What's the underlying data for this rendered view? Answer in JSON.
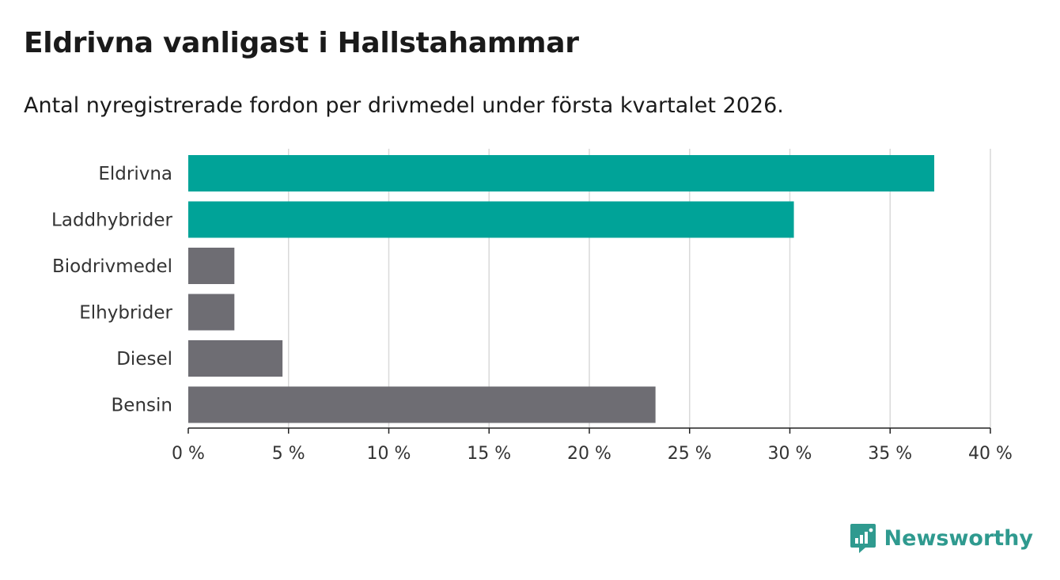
{
  "title": "Eldrivna vanligast i Hallstahammar",
  "subtitle": "Antal nyregistrerade fordon per drivmedel under första kvartalet 2026.",
  "brand": {
    "name": "Newsworthy",
    "icon": "newsworthy-logo-icon",
    "color": "#2f9a8f"
  },
  "chart_data": {
    "type": "bar",
    "orientation": "horizontal",
    "title": "Eldrivna vanligast i Hallstahammar",
    "subtitle": "Antal nyregistrerade fordon per drivmedel under första kvartalet 2026.",
    "xlabel": "",
    "ylabel": "",
    "xlim": [
      0,
      40
    ],
    "unit_suffix": " %",
    "ticks": [
      0,
      5,
      10,
      15,
      20,
      25,
      30,
      35,
      40
    ],
    "tick_labels": [
      "0 %",
      "5 %",
      "10 %",
      "15 %",
      "20 %",
      "25 %",
      "30 %",
      "35 %",
      "40 %"
    ],
    "grid": true,
    "categories": [
      "Eldrivna",
      "Laddhybrider",
      "Biodrivmedel",
      "Elhybrider",
      "Diesel",
      "Bensin"
    ],
    "values": [
      37.2,
      30.2,
      2.3,
      2.3,
      4.7,
      23.3
    ],
    "colors": [
      "#00a398",
      "#00a398",
      "#6e6d73",
      "#6e6d73",
      "#6e6d73",
      "#6e6d73"
    ]
  }
}
